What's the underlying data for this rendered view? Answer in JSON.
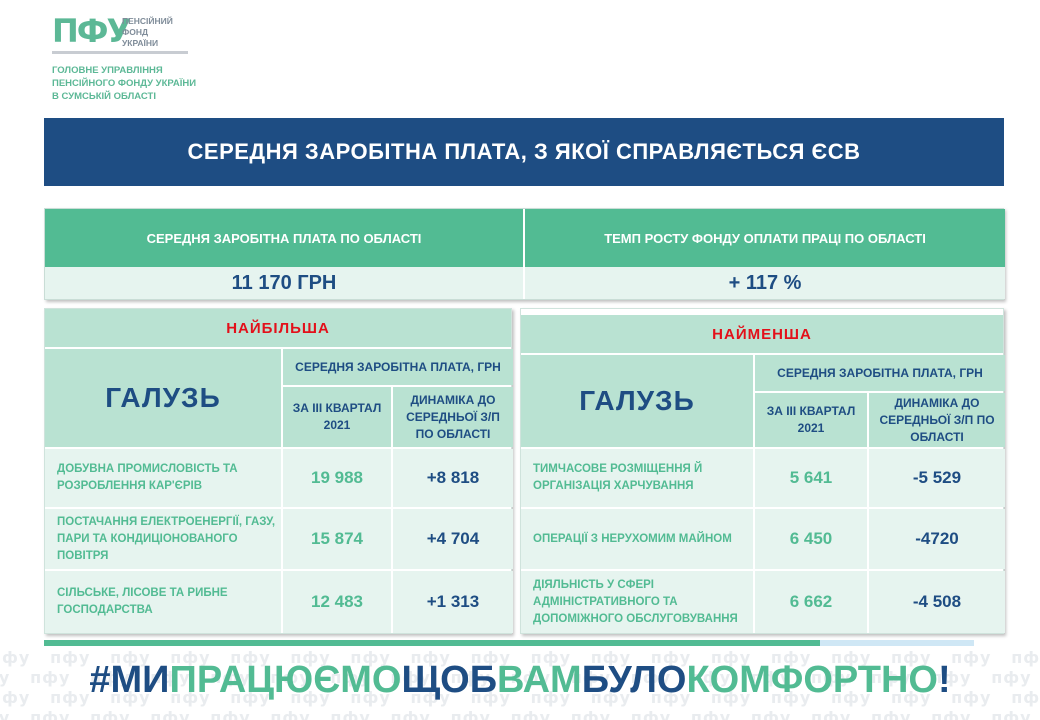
{
  "logo": {
    "mark": "ПФУ",
    "text": [
      "ПЕНСІЙНИЙ",
      "ФОНД",
      "УКРАЇНИ"
    ]
  },
  "org": [
    "ГОЛОВНЕ УПРАВЛІННЯ",
    "ПЕНСІЙНОГО ФОНДУ УКРАЇНИ",
    "В СУМСЬКІЙ ОБЛАСТІ"
  ],
  "title": "СЕРЕДНЯ ЗАРОБІТНА ПЛАТА, З ЯКОЇ СПРАВЛЯЄТЬСЯ ЄСВ",
  "summary": {
    "left_header": "СЕРЕДНЯ ЗАРОБІТНА ПЛАТА ПО ОБЛАСТІ",
    "left_value": "11 170 ГРН",
    "right_header": "ТЕМП РОСТУ ФОНДУ ОПЛАТИ ПРАЦІ ПО ОБЛАСТІ",
    "right_value": "+ 117 %"
  },
  "largest": {
    "title": "НАЙБІЛЬША",
    "col_industry": "ГАЛУЗЬ",
    "col_group": "СЕРЕДНЯ ЗАРОБІТНА ПЛАТА, ГРН",
    "col_quarter": "ЗА ІІІ КВАРТАЛ 2021",
    "col_dynamics": "ДИНАМІКА ДО СЕРЕДНЬОЇ З/П ПО ОБЛАСТІ",
    "rows": [
      {
        "name": "ДОБУВНА ПРОМИСЛОВІСТЬ ТА РОЗРОБЛЕННЯ КАР'ЄРІВ",
        "quarter": "19 988",
        "dynamics": "+8 818"
      },
      {
        "name": "ПОСТАЧАННЯ ЕЛЕКТРОЕНЕРГІЇ, ГАЗУ, ПАРИ ТА КОНДИЦІОНОВАНОГО ПОВІТРЯ",
        "quarter": "15 874",
        "dynamics": "+4 704"
      },
      {
        "name": "СІЛЬСЬКЕ, ЛІСОВЕ ТА РИБНЕ ГОСПОДАРСТВА",
        "quarter": "12 483",
        "dynamics": "+1 313"
      }
    ]
  },
  "smallest": {
    "title": "НАЙМЕНША",
    "col_industry": "ГАЛУЗЬ",
    "col_group": "СЕРЕДНЯ ЗАРОБІТНА ПЛАТА, ГРН",
    "col_quarter": "ЗА ІІІ КВАРТАЛ 2021",
    "col_dynamics": "ДИНАМІКА ДО СЕРЕДНЬОЇ З/П ПО ОБЛАСТІ",
    "rows": [
      {
        "name": "ТИМЧАСОВЕ РОЗМІЩЕННЯ Й ОРГАНІЗАЦІЯ ХАРЧУВАННЯ",
        "quarter": "5 641",
        "dynamics": "-5 529"
      },
      {
        "name": "ОПЕРАЦІЇ З НЕРУХОМИМ МАЙНОМ",
        "quarter": "6 450",
        "dynamics": "-4720"
      },
      {
        "name": "ДІЯЛЬНІСТЬ У СФЕРІ АДМІНІСТРАТИВНОГО ТА ДОПОМІЖНОГО ОБСЛУГОВУВАННЯ",
        "quarter": "6 662",
        "dynamics": "-4 508"
      }
    ]
  },
  "slogan": [
    {
      "text": "#МИ",
      "color": "#1e4d83"
    },
    {
      "text": "ПРАЦЮЄМО",
      "color": "#52bb93"
    },
    {
      "text": "ЩОБ",
      "color": "#1e4d83"
    },
    {
      "text": "ВАМ",
      "color": "#52bb93"
    },
    {
      "text": "БУЛО",
      "color": "#1e4d83"
    },
    {
      "text": "КОМФОРТНО",
      "color": "#52bb93"
    },
    {
      "text": "!",
      "color": "#1e4d83"
    }
  ],
  "watermark_word": "пфу",
  "colors": {
    "navy": "#1e4d83",
    "green": "#52bb93",
    "light_green": "#b9e2d2",
    "pale_green": "#e6f4ef",
    "red": "#e3101a"
  }
}
